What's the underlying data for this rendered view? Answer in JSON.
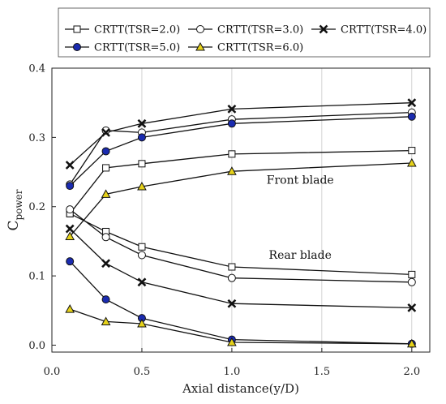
{
  "chart_data": {
    "type": "line",
    "xlabel": "Axial distance(y/D)",
    "ylabel": "C",
    "ylabel_sub": "power",
    "xlim": [
      0.0,
      2.1
    ],
    "ylim": [
      -0.01,
      0.4
    ],
    "xticks": [
      0.0,
      0.5,
      1.0,
      1.5,
      2.0
    ],
    "xtick_labels": [
      "0.0",
      "0.5",
      "1.0",
      "1.5",
      "2.0"
    ],
    "yticks": [
      0.0,
      0.1,
      0.2,
      0.3,
      0.4
    ],
    "ytick_labels": [
      "0.0",
      "0.1",
      "0.2",
      "0.3",
      "0.4"
    ],
    "grid": "vertical dashed",
    "legend_position": "top",
    "x": [
      0.1,
      0.3,
      0.5,
      1.0,
      2.0
    ],
    "series": [
      {
        "name": "CRTT(TSR=2.0)",
        "marker": "square",
        "fill": "#ffffff",
        "front": [
          0.19,
          0.256,
          0.262,
          0.276,
          0.281
        ],
        "rear": [
          0.19,
          0.164,
          0.142,
          0.113,
          0.102
        ]
      },
      {
        "name": "CRTT(TSR=3.0)",
        "marker": "circle",
        "fill": "#ffffff",
        "front": [
          0.232,
          0.31,
          0.307,
          0.326,
          0.336
        ],
        "rear": [
          0.196,
          0.156,
          0.13,
          0.097,
          0.091
        ]
      },
      {
        "name": "CRTT(TSR=4.0)",
        "marker": "x",
        "fill": "#111111",
        "front": [
          0.26,
          0.307,
          0.32,
          0.341,
          0.35
        ],
        "rear": [
          0.168,
          0.118,
          0.091,
          0.06,
          0.054
        ]
      },
      {
        "name": "CRTT(TSR=5.0)",
        "marker": "circle",
        "fill": "#1a2bb0",
        "front": [
          0.23,
          0.28,
          0.3,
          0.32,
          0.33
        ],
        "rear": [
          0.121,
          0.066,
          0.039,
          0.008,
          0.002
        ]
      },
      {
        "name": "CRTT(TSR=6.0)",
        "marker": "triangle",
        "fill": "#e6d21a",
        "front": [
          0.157,
          0.218,
          0.229,
          0.251,
          0.263
        ],
        "rear": [
          0.052,
          0.034,
          0.031,
          0.004,
          0.002
        ]
      }
    ],
    "annotations": [
      {
        "text": "Front blade",
        "x": 1.38,
        "y": 0.233
      },
      {
        "text": "Rear blade",
        "x": 1.38,
        "y": 0.125
      }
    ]
  }
}
